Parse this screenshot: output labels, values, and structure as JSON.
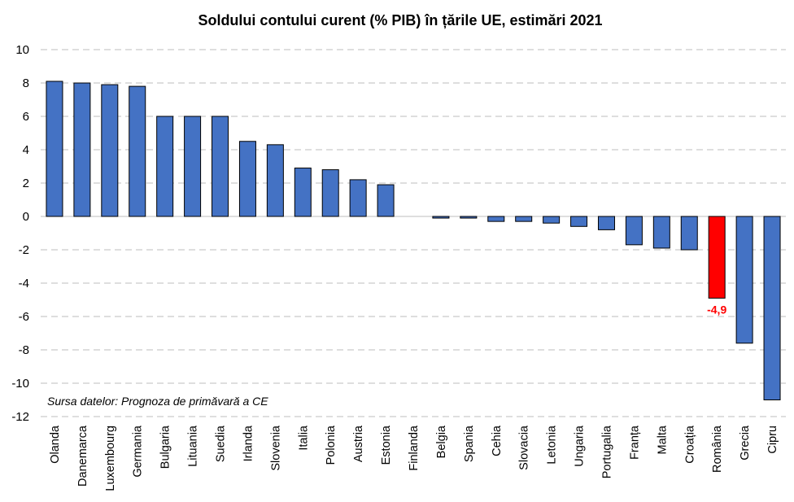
{
  "chart_data": {
    "type": "bar",
    "title": "Soldului contului curent (% PIB) în țările UE, estimări 2021",
    "xlabel": "",
    "ylabel": "",
    "ylim": [
      -12,
      10
    ],
    "yticks": [
      10,
      8,
      6,
      4,
      2,
      0,
      -2,
      -4,
      -6,
      -8,
      -10,
      -12
    ],
    "grid": true,
    "categories": [
      "Olanda",
      "Danemarca",
      "Luxembourg",
      "Germania",
      "Bulgaria",
      "Lituania",
      "Suedia",
      "Irlanda",
      "Slovenia",
      "Italia",
      "Polonia",
      "Austria",
      "Estonia",
      "Finlanda",
      "Belgia",
      "Spania",
      "Cehia",
      "Slovacia",
      "Letonia",
      "Ungaria",
      "Portugalia",
      "Franța",
      "Malta",
      "Croația",
      "România",
      "Grecia",
      "Cipru"
    ],
    "values": [
      8.1,
      8.0,
      7.9,
      7.8,
      6.0,
      6.0,
      6.0,
      4.5,
      4.3,
      2.9,
      2.8,
      2.2,
      1.9,
      0.0,
      -0.1,
      -0.1,
      -0.3,
      -0.3,
      -0.4,
      -0.6,
      -0.8,
      -1.7,
      -1.9,
      -2.0,
      -4.9,
      -7.6,
      -11.0
    ],
    "bar_color": "#4472c4",
    "highlight": {
      "category": "România",
      "color": "#ff0000",
      "label": "-4,9",
      "label_color": "#ff0000"
    },
    "source_note": "Sursa datelor: Prognoza de primăvară a CE"
  }
}
